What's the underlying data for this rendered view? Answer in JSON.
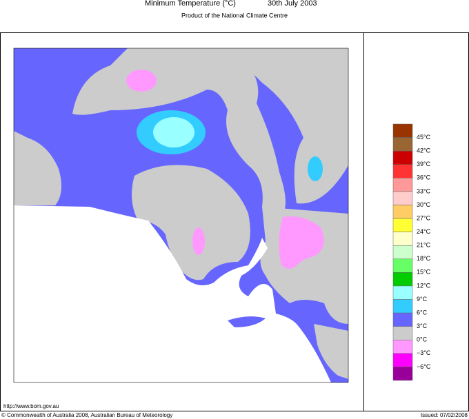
{
  "header": {
    "title": "Minimum Temperature (°C)",
    "date": "30th July 2003",
    "subtitle": "Product of the National Climate Centre"
  },
  "legend": {
    "colors": [
      "#993300",
      "#996633",
      "#cc0000",
      "#ff3333",
      "#ff9999",
      "#ffcccc",
      "#ffcc66",
      "#ffff33",
      "#ffffcc",
      "#ccffcc",
      "#66ff66",
      "#00cc00",
      "#99ffff",
      "#33ccff",
      "#6666ff",
      "#cccccc",
      "#ff99ff",
      "#ff00ff",
      "#990099"
    ],
    "labels": [
      "45°C",
      "42°C",
      "39°C",
      "36°C",
      "33°C",
      "30°C",
      "27°C",
      "24°C",
      "21°C",
      "18°C",
      "15°C",
      "12°C",
      "9°C",
      "6°C",
      "3°C",
      "0°C",
      "−3°C",
      "−6°C"
    ]
  },
  "footer": {
    "url": "http://www.bom.gov.au",
    "copyright": "© Commonwealth of Australia 2008, Australian Bureau of Meteorology",
    "issued": "Issued: 07/02/2008"
  }
}
